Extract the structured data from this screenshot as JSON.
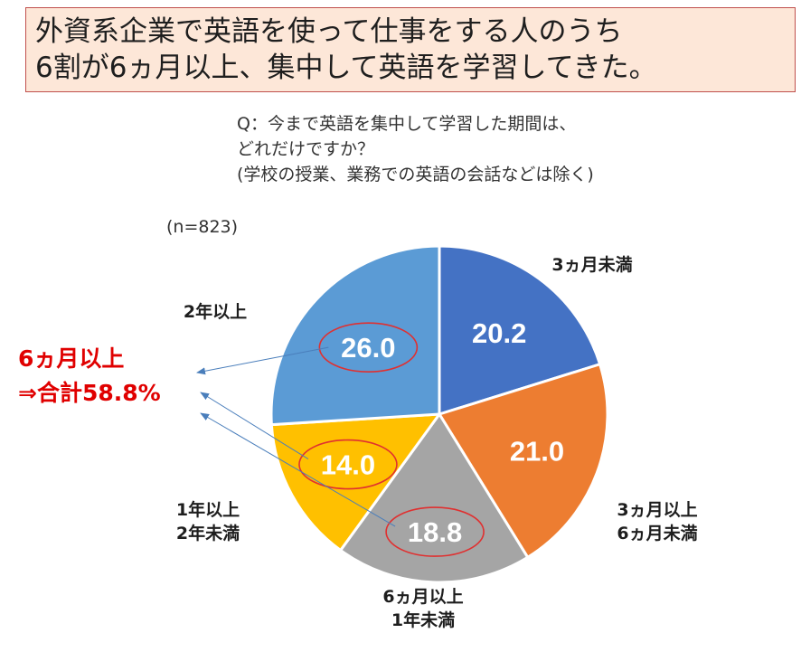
{
  "headline": {
    "line1": "外資系企業で英語を使って仕事をする人のうち",
    "line2": "6割が6ヵ月以上、集中して英語を学習してきた。"
  },
  "question": {
    "line1": "Q：今まで英語を集中して学習した期間は、",
    "line2": "どれだけですか？",
    "line3": "(学校の授業、業務での英語の会話などは除く)"
  },
  "sample_size": "(n=823)",
  "callout": {
    "line1": "6ヵ月以上",
    "line2": "⇒合計58.8%"
  },
  "chart_data": {
    "type": "pie",
    "start": "12 o'clock, clockwise",
    "slices": [
      {
        "label_lines": [
          "3ヵ月未満"
        ],
        "value": 20.2,
        "value_label": "20.2",
        "color": "#4472c4"
      },
      {
        "label_lines": [
          "3ヵ月以上",
          "6ヵ月未満"
        ],
        "value": 21.0,
        "value_label": "21.0",
        "color": "#ed7d31"
      },
      {
        "label_lines": [
          "6ヵ月以上",
          "1年未満"
        ],
        "value": 18.8,
        "value_label": "18.8",
        "color": "#a5a5a5",
        "circled": true
      },
      {
        "label_lines": [
          "1年以上",
          "2年未満"
        ],
        "value": 14.0,
        "value_label": "14.0",
        "color": "#ffc000",
        "circled": true
      },
      {
        "label_lines": [
          "2年以上"
        ],
        "value": 26.0,
        "value_label": "26.0",
        "color": "#5b9bd5",
        "circled": true
      }
    ],
    "slice_border_color": "#ffffff",
    "highlight_color": "#e03030",
    "arrow_color": "#4a7ebb"
  }
}
